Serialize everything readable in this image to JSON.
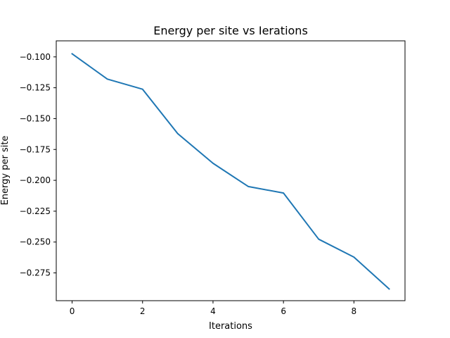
{
  "chart_data": {
    "type": "line",
    "title": "Energy per site vs Ierations",
    "xlabel": "Iterations",
    "ylabel": "Energy per site",
    "x": [
      0,
      1,
      2,
      3,
      4,
      5,
      6,
      7,
      8,
      9
    ],
    "series": [
      {
        "values": [
          -0.0975,
          -0.118,
          -0.1262,
          -0.1622,
          -0.1862,
          -0.205,
          -0.2103,
          -0.2477,
          -0.2622,
          -0.288
        ],
        "color": "#1f77b4"
      }
    ],
    "xlim": [
      -0.45,
      9.45
    ],
    "ylim": [
      -0.2975,
      -0.087
    ],
    "xticks": [
      0,
      2,
      4,
      6,
      8
    ],
    "xtick_labels": [
      "0",
      "2",
      "4",
      "6",
      "8"
    ],
    "yticks": [
      -0.1,
      -0.125,
      -0.15,
      -0.175,
      -0.2,
      -0.225,
      -0.25,
      -0.275
    ],
    "ytick_labels": [
      "−0.100",
      "−0.125",
      "−0.150",
      "−0.175",
      "−0.200",
      "−0.225",
      "−0.250",
      "−0.275"
    ],
    "grid": false,
    "legend": "none"
  }
}
